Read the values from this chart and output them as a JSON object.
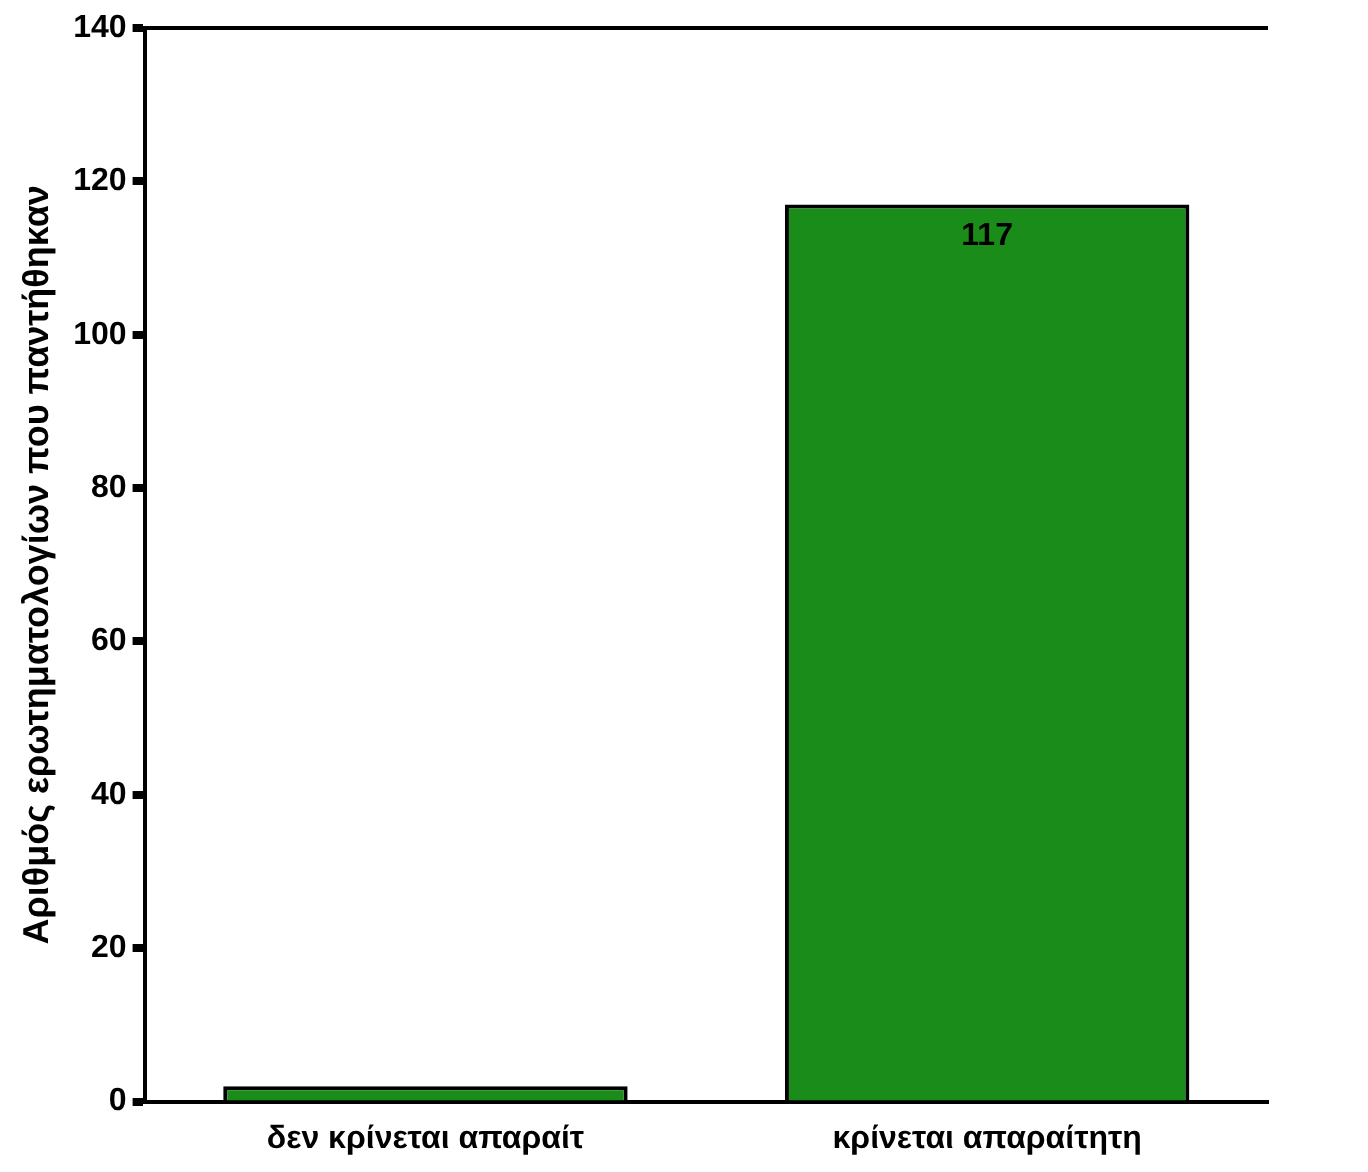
{
  "chart_data": {
    "type": "bar",
    "ylabel": "Αριθμός ερωτηματολογίων που παντήθηκαν",
    "categories": [
      "δεν κρίνεται απαραίτ",
      "κρίνεται απαραίτητη"
    ],
    "values": [
      2,
      117
    ],
    "color": "#1a8c1a",
    "value_labels": [
      null,
      "117"
    ],
    "ylim": [
      0,
      140
    ],
    "yticks": [
      0,
      20,
      40,
      60,
      80,
      100,
      120,
      140
    ],
    "grid": false,
    "legend": false
  }
}
